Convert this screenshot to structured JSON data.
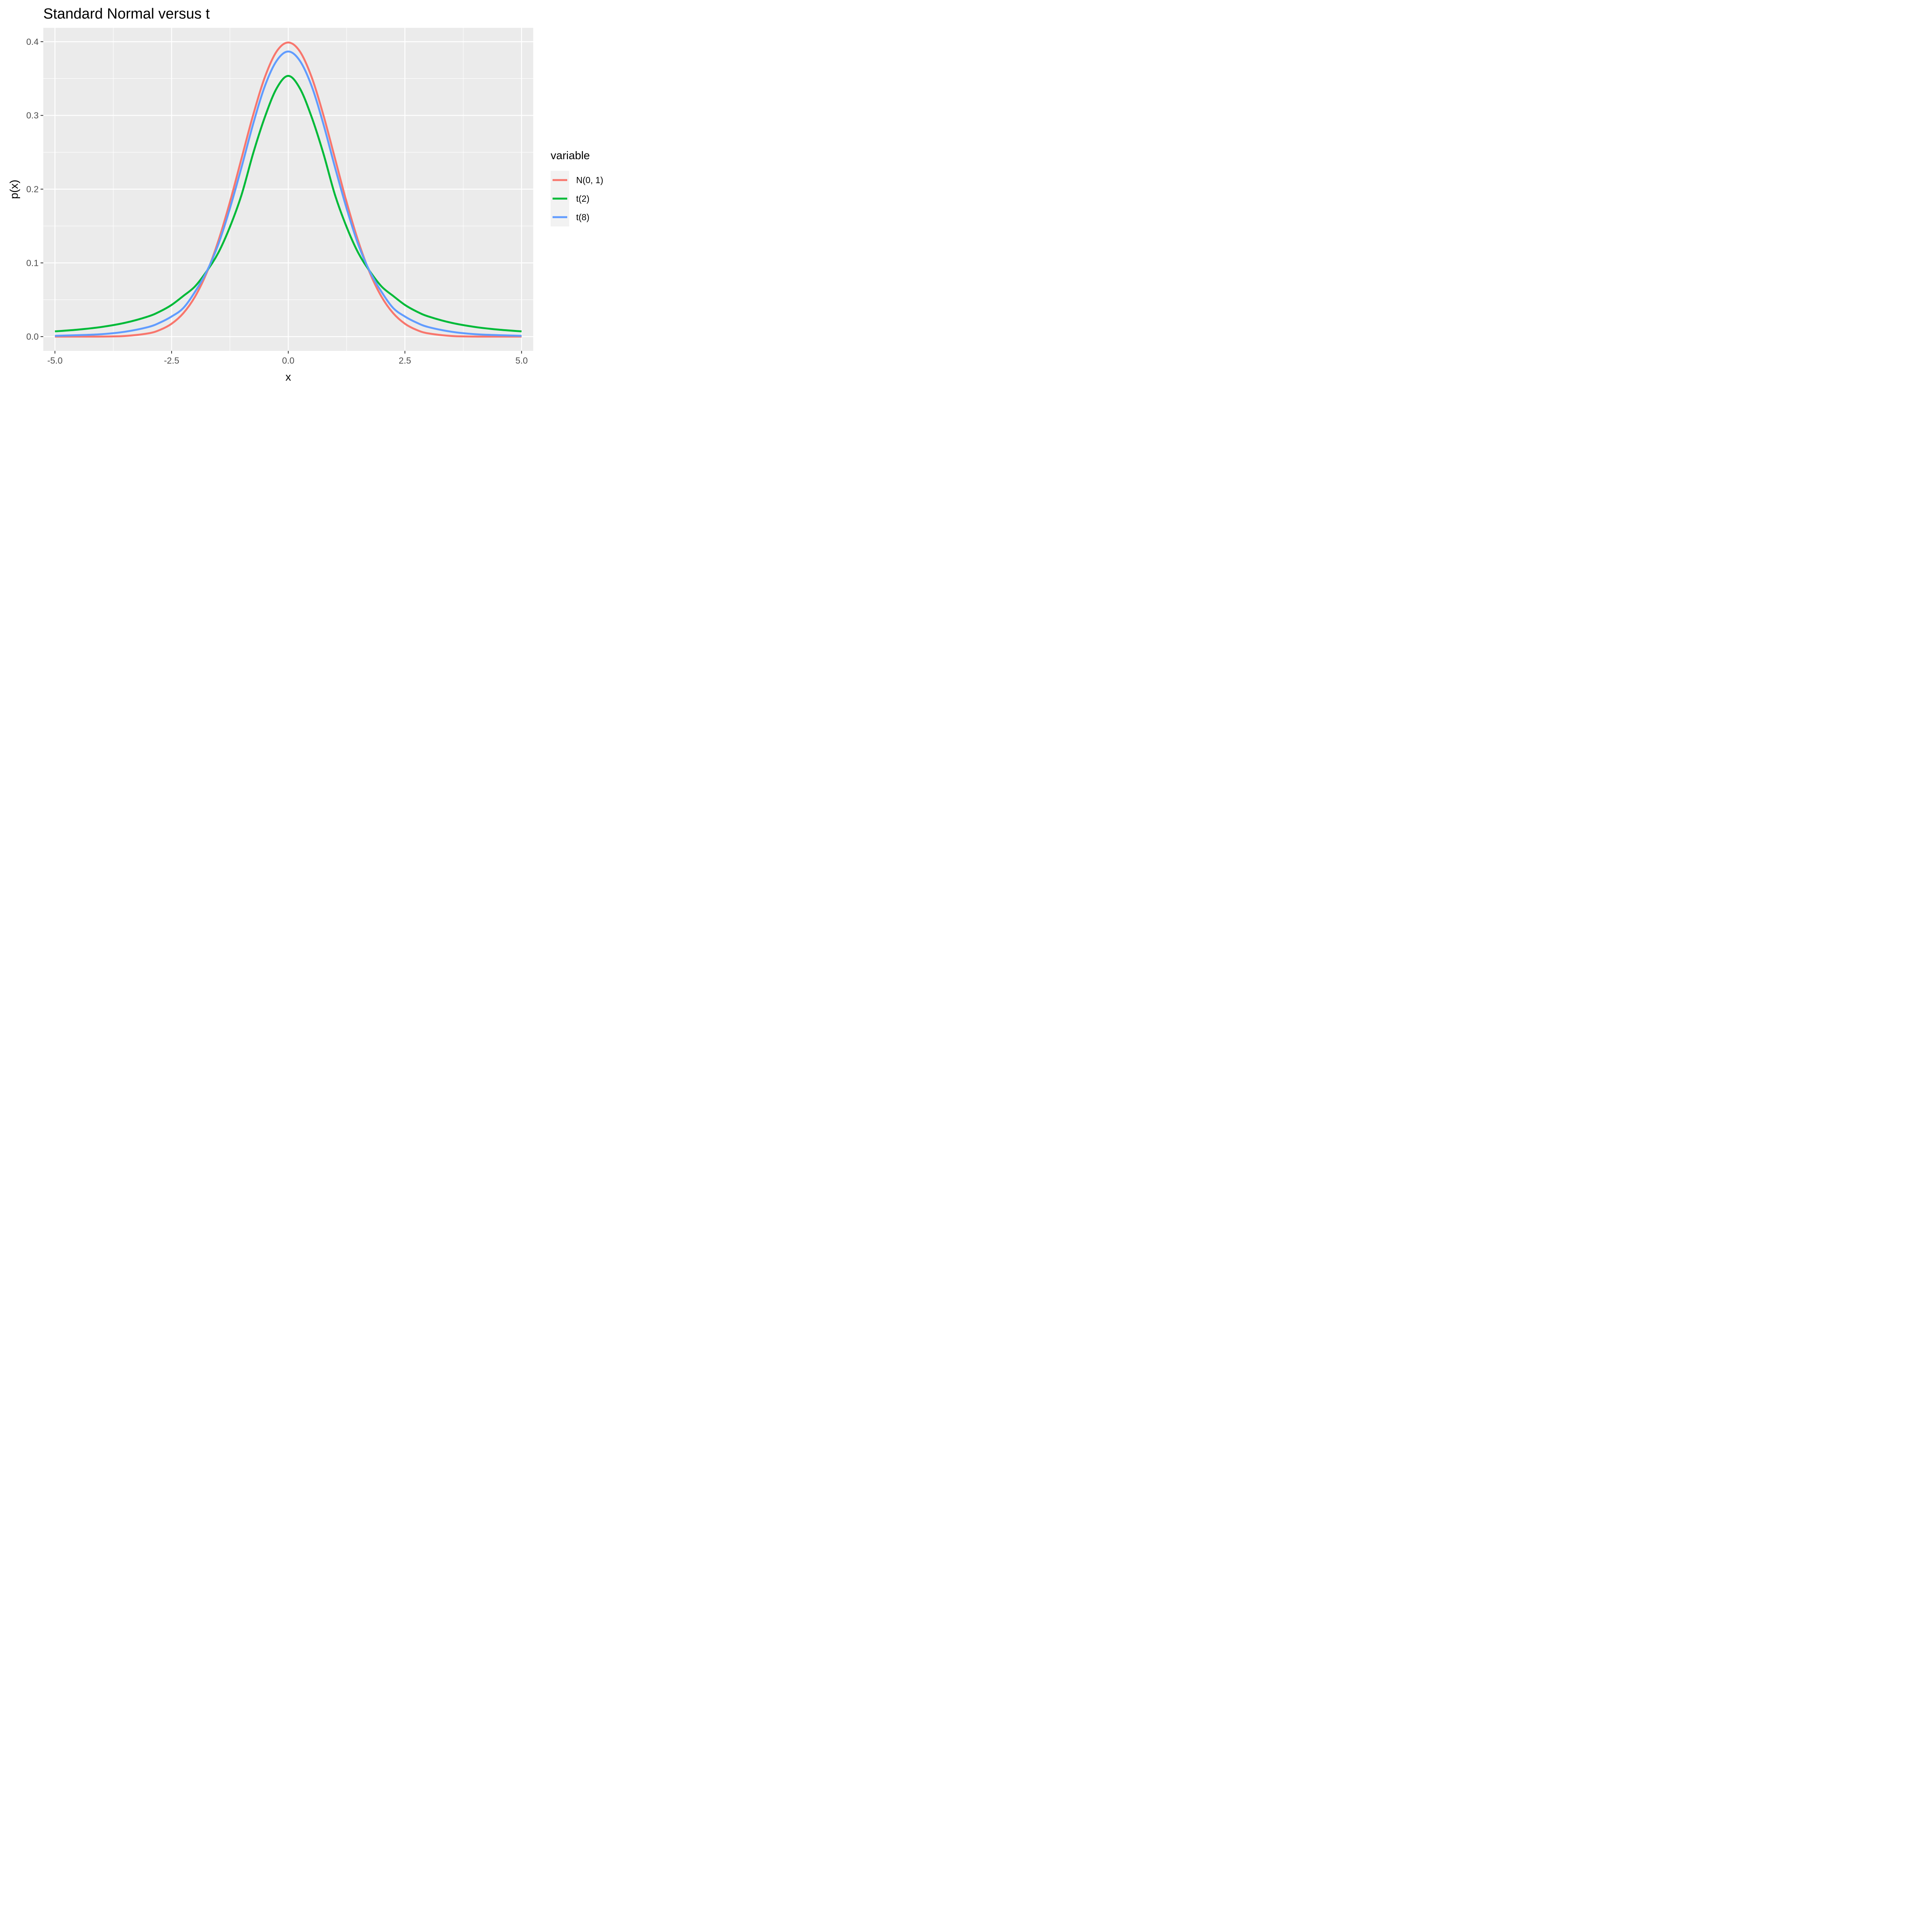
{
  "chart_data": {
    "type": "line",
    "title": "Standard Normal versus t",
    "xlabel": "x",
    "ylabel": "p(x)",
    "xlim": [
      -5.25,
      5.25
    ],
    "ylim": [
      -0.0193,
      0.4188
    ],
    "x_ticks": [
      -5.0,
      -2.5,
      0.0,
      2.5,
      5.0
    ],
    "x_tick_labels": [
      "-5.0",
      "-2.5",
      "0.0",
      "2.5",
      "5.0"
    ],
    "y_ticks": [
      0.0,
      0.1,
      0.2,
      0.3,
      0.4
    ],
    "y_tick_labels": [
      "0.0",
      "0.1",
      "0.2",
      "0.3",
      "0.4"
    ],
    "grid": true,
    "legend": {
      "title": "variable",
      "placement": "right"
    },
    "series": [
      {
        "name": "N(0, 1)",
        "color": "#F8766D",
        "x": [
          -5,
          -4.5,
          -4,
          -3.5,
          -3,
          -2.75,
          -2.5,
          -2.25,
          -2,
          -1.75,
          -1.5,
          -1.25,
          -1,
          -0.75,
          -0.5,
          -0.25,
          0,
          0.25,
          0.5,
          0.75,
          1,
          1.25,
          1.5,
          1.75,
          2,
          2.25,
          2.5,
          2.75,
          3,
          3.5,
          4,
          4.5,
          5
        ],
        "y": [
          0.0,
          0.0,
          0.0001,
          0.0009,
          0.0044,
          0.0091,
          0.0175,
          0.0317,
          0.054,
          0.0863,
          0.1295,
          0.1826,
          0.242,
          0.3011,
          0.3521,
          0.3867,
          0.3989,
          0.3867,
          0.3521,
          0.3011,
          0.242,
          0.1826,
          0.1295,
          0.0863,
          0.054,
          0.0317,
          0.0175,
          0.0091,
          0.0044,
          0.0009,
          0.0001,
          0.0,
          0.0
        ]
      },
      {
        "name": "t(2)",
        "color": "#00BA38",
        "x": [
          -5,
          -4.5,
          -4,
          -3.5,
          -3,
          -2.75,
          -2.5,
          -2.25,
          -2,
          -1.75,
          -1.5,
          -1.25,
          -1,
          -0.75,
          -0.5,
          -0.25,
          0,
          0.25,
          0.5,
          0.75,
          1,
          1.25,
          1.5,
          1.75,
          2,
          2.25,
          2.5,
          2.75,
          3,
          3.5,
          4,
          4.5,
          5
        ],
        "y": [
          0.0071,
          0.0095,
          0.0131,
          0.0187,
          0.0274,
          0.0341,
          0.043,
          0.0551,
          0.068,
          0.0885,
          0.1136,
          0.1488,
          0.1925,
          0.249,
          0.298,
          0.3366,
          0.3536,
          0.3366,
          0.298,
          0.249,
          0.1925,
          0.1488,
          0.1136,
          0.0885,
          0.068,
          0.0551,
          0.043,
          0.0341,
          0.0274,
          0.0187,
          0.0131,
          0.0095,
          0.0071
        ]
      },
      {
        "name": "t(8)",
        "color": "#619CFF",
        "x": [
          -5,
          -4.5,
          -4,
          -3.5,
          -3,
          -2.75,
          -2.5,
          -2.25,
          -2,
          -1.75,
          -1.5,
          -1.25,
          -1,
          -0.75,
          -0.5,
          -0.25,
          0,
          0.25,
          0.5,
          0.75,
          1,
          1.25,
          1.5,
          1.75,
          2,
          2.25,
          2.5,
          2.75,
          3,
          3.5,
          4,
          4.5,
          5
        ],
        "y": [
          0.0011,
          0.002,
          0.0033,
          0.0066,
          0.013,
          0.019,
          0.0273,
          0.0387,
          0.0606,
          0.088,
          0.125,
          0.174,
          0.23,
          0.289,
          0.34,
          0.374,
          0.3867,
          0.374,
          0.34,
          0.289,
          0.23,
          0.174,
          0.125,
          0.088,
          0.0606,
          0.0387,
          0.0273,
          0.019,
          0.013,
          0.0066,
          0.0033,
          0.002,
          0.0011
        ]
      }
    ]
  }
}
